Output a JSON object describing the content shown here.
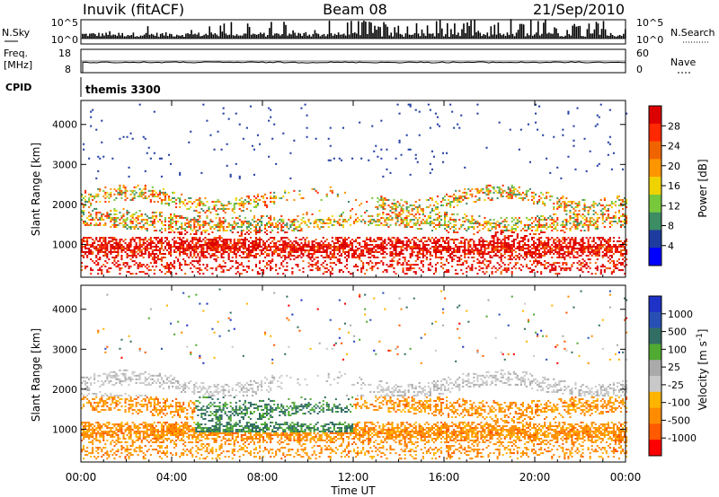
{
  "header": {
    "station": "Inuvik (fitACF)",
    "beam": "Beam 08",
    "date": "21/Sep/2010"
  },
  "sky_panel": {
    "left_label": "N.Sky",
    "right_label": "N.Search",
    "left_ticks": [
      "10^5",
      "10^0"
    ],
    "right_ticks": [
      "10^5",
      "10^0"
    ]
  },
  "freq_panel": {
    "left_label_top": "Freq.",
    "left_label_bottom": "[MHz]",
    "right_label": "Nave",
    "left_ticks": [
      "18",
      "8"
    ],
    "right_ticks": [
      "60",
      "0"
    ]
  },
  "cpid": {
    "label": "CPID",
    "value": "themis 3300"
  },
  "colors": {
    "power": [
      "#0000ff",
      "#1e3ca0",
      "#3c8c64",
      "#78c83c",
      "#f0d200",
      "#ff9600",
      "#f06400",
      "#ff2800",
      "#dc0000"
    ],
    "velocity": [
      "#1e32c8",
      "#2850b4",
      "#326e64",
      "#50aa32",
      "#aaaaaa",
      "#c8c8c8",
      "#ffb400",
      "#ff8c00",
      "#ff5a00",
      "#ff0000"
    ]
  },
  "chart_data": [
    {
      "type": "heatmap",
      "name": "Power",
      "xlabel": "Time UT",
      "ylabel": "Slant Range [km]",
      "x_ticks": [
        "00:00",
        "04:00",
        "08:00",
        "12:00",
        "16:00",
        "20:00",
        "00:00"
      ],
      "x_range_hours": [
        0,
        24
      ],
      "y_ticks": [
        1000,
        2000,
        3000,
        4000
      ],
      "y_range_km": [
        180,
        4600
      ],
      "colorbar_label": "Power [dB]",
      "colorbar_ticks": [
        4,
        8,
        12,
        16,
        20,
        24,
        28
      ],
      "colorbar_range": [
        0,
        30
      ]
    },
    {
      "type": "heatmap",
      "name": "Velocity",
      "xlabel": "Time UT",
      "ylabel": "Slant Range [km]",
      "x_ticks": [
        "00:00",
        "04:00",
        "08:00",
        "12:00",
        "16:00",
        "20:00",
        "00:00"
      ],
      "x_range_hours": [
        0,
        24
      ],
      "y_ticks": [
        1000,
        2000,
        3000,
        4000
      ],
      "y_range_km": [
        180,
        4600
      ],
      "colorbar_label": "Velocity [m s",
      "colorbar_label_sup": "-1",
      "colorbar_ticks": [
        1000,
        500,
        100,
        25,
        -25,
        -100,
        -500,
        -1000
      ]
    }
  ]
}
